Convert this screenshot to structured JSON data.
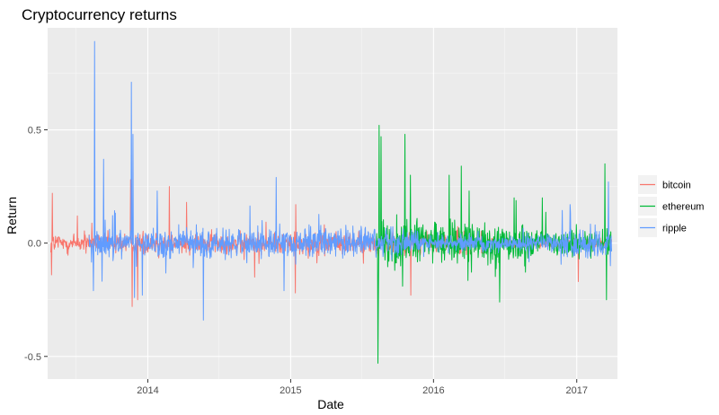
{
  "chart_data": {
    "type": "line",
    "title": "Cryptocurrency returns",
    "xlabel": "Date",
    "ylabel": "Return",
    "x_ticks": [
      "2014",
      "2015",
      "2016",
      "2017"
    ],
    "y_ticks": [
      "-0.5",
      "0.0",
      "0.5"
    ],
    "xlim": [
      "2013-04-20",
      "2017-04-15"
    ],
    "ylim": [
      -0.6,
      0.95
    ],
    "grid": true,
    "legend_position": "right",
    "series": [
      {
        "name": "bitcoin",
        "color": "#F8766D",
        "x_range": [
          "2013-04-28",
          "2017-03-31"
        ],
        "spikes": [
          {
            "date": "2013-05-02",
            "value": 0.22
          },
          {
            "date": "2013-04-30",
            "value": -0.14
          },
          {
            "date": "2013-07-05",
            "value": 0.12
          },
          {
            "date": "2013-11-18",
            "value": 0.28
          },
          {
            "date": "2013-11-22",
            "value": -0.28
          },
          {
            "date": "2013-12-06",
            "value": -0.25
          },
          {
            "date": "2014-02-25",
            "value": 0.25
          },
          {
            "date": "2014-04-10",
            "value": 0.18
          },
          {
            "date": "2014-10-01",
            "value": -0.15
          },
          {
            "date": "2015-01-14",
            "value": 0.17
          },
          {
            "date": "2015-01-13",
            "value": -0.22
          },
          {
            "date": "2015-11-04",
            "value": -0.23
          },
          {
            "date": "2017-01-05",
            "value": -0.17
          }
        ]
      },
      {
        "name": "ethereum",
        "color": "#00BA38",
        "x_range": [
          "2015-08-08",
          "2017-03-31"
        ],
        "spikes": [
          {
            "date": "2015-08-12",
            "value": -0.53
          },
          {
            "date": "2015-08-15",
            "value": 0.52
          },
          {
            "date": "2015-08-20",
            "value": 0.47
          },
          {
            "date": "2015-08-13",
            "value": -0.26
          },
          {
            "date": "2015-10-20",
            "value": 0.48
          },
          {
            "date": "2015-11-03",
            "value": 0.3
          },
          {
            "date": "2016-03-12",
            "value": 0.34
          },
          {
            "date": "2016-04-01",
            "value": 0.23
          },
          {
            "date": "2016-02-10",
            "value": 0.3
          },
          {
            "date": "2016-06-18",
            "value": -0.26
          },
          {
            "date": "2016-07-25",
            "value": 0.2
          },
          {
            "date": "2016-10-05",
            "value": 0.2
          },
          {
            "date": "2017-03-14",
            "value": 0.35
          },
          {
            "date": "2017-03-18",
            "value": -0.25
          }
        ]
      },
      {
        "name": "ripple",
        "color": "#619CFF",
        "x_range": [
          "2013-08-04",
          "2017-03-31"
        ],
        "spikes": [
          {
            "date": "2013-08-18",
            "value": 0.89
          },
          {
            "date": "2013-08-15",
            "value": -0.21
          },
          {
            "date": "2013-09-10",
            "value": 0.37
          },
          {
            "date": "2013-11-20",
            "value": 0.71
          },
          {
            "date": "2013-11-24",
            "value": 0.48
          },
          {
            "date": "2013-11-28",
            "value": -0.24
          },
          {
            "date": "2013-12-18",
            "value": -0.23
          },
          {
            "date": "2014-01-25",
            "value": 0.23
          },
          {
            "date": "2014-05-23",
            "value": -0.34
          },
          {
            "date": "2014-11-25",
            "value": 0.29
          },
          {
            "date": "2014-12-15",
            "value": -0.21
          },
          {
            "date": "2016-12-15",
            "value": 0.17
          },
          {
            "date": "2017-03-23",
            "value": 0.27
          },
          {
            "date": "2017-03-28",
            "value": -0.1
          }
        ]
      }
    ]
  }
}
